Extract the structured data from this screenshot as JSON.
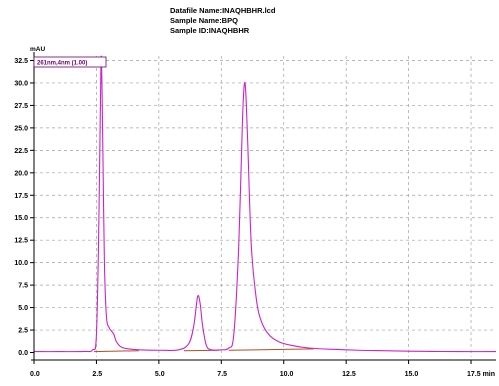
{
  "header": {
    "line1": "Datafile Name:INAQHBHR.lcd",
    "line2": "Sample Name:BPQ",
    "line3": "Sample ID:INAQHBHR"
  },
  "colors": {
    "trace": "#cc22cc",
    "baseline": "#b05020",
    "grid": "#a0a0a0",
    "frame": "#000000",
    "legend_border": "#6a006a"
  },
  "chart_data": {
    "type": "line",
    "ylabel": "mAU",
    "xlim": [
      0,
      18.5
    ],
    "ylim": [
      -0.5,
      33
    ],
    "x_ticks": [
      0.0,
      2.5,
      5.0,
      7.5,
      10.0,
      12.5,
      15.0,
      17.5
    ],
    "x_tick_labels": [
      "0.0",
      "2.5",
      "5.0",
      "7.5",
      "10.0",
      "12.5",
      "15.0",
      "17.5 min"
    ],
    "y_ticks": [
      0.0,
      2.5,
      5.0,
      7.5,
      10.0,
      12.5,
      15.0,
      17.5,
      20.0,
      22.5,
      25.0,
      27.5,
      30.0,
      32.5
    ],
    "y_tick_labels": [
      "0.0",
      "2.5",
      "5.0",
      "7.5",
      "10.0",
      "12.5",
      "15.0",
      "17.5",
      "20.0",
      "22.5",
      "25.0",
      "27.5",
      "30.0",
      "32.5"
    ],
    "grid": true,
    "legend": "top-left",
    "series": [
      {
        "name": "261nm,4nm (1.00)",
        "x": [
          0.0,
          1.0,
          2.0,
          2.35,
          2.5,
          2.6,
          2.68,
          2.72,
          2.76,
          2.82,
          2.9,
          3.0,
          3.1,
          3.2,
          3.3,
          3.5,
          3.8,
          4.2,
          5.0,
          5.8,
          6.2,
          6.4,
          6.55,
          6.65,
          6.75,
          6.9,
          7.1,
          7.5,
          7.8,
          8.0,
          8.2,
          8.35,
          8.45,
          8.55,
          8.7,
          8.9,
          9.1,
          9.4,
          9.8,
          10.3,
          11.0,
          12.0,
          13.0,
          14.0,
          15.0,
          16.0,
          17.0,
          18.5
        ],
        "y": [
          0.1,
          0.1,
          0.12,
          0.3,
          2.0,
          15.0,
          32.0,
          30.0,
          22.0,
          10.0,
          4.0,
          2.8,
          2.4,
          2.0,
          1.2,
          0.6,
          0.4,
          0.3,
          0.25,
          0.3,
          1.0,
          3.0,
          6.2,
          5.5,
          3.0,
          0.8,
          0.3,
          0.3,
          0.5,
          2.0,
          12.0,
          26.0,
          30.0,
          24.0,
          12.0,
          6.0,
          3.5,
          2.0,
          1.2,
          0.8,
          0.5,
          0.35,
          0.25,
          0.2,
          0.15,
          0.12,
          0.1,
          0.1
        ]
      }
    ],
    "baselines": [
      {
        "x": [
          2.4,
          4.2
        ],
        "y": [
          0.1,
          0.2
        ]
      },
      {
        "x": [
          6.0,
          7.4
        ],
        "y": [
          0.2,
          0.25
        ]
      },
      {
        "x": [
          7.8,
          11.2
        ],
        "y": [
          0.25,
          0.4
        ]
      }
    ]
  }
}
